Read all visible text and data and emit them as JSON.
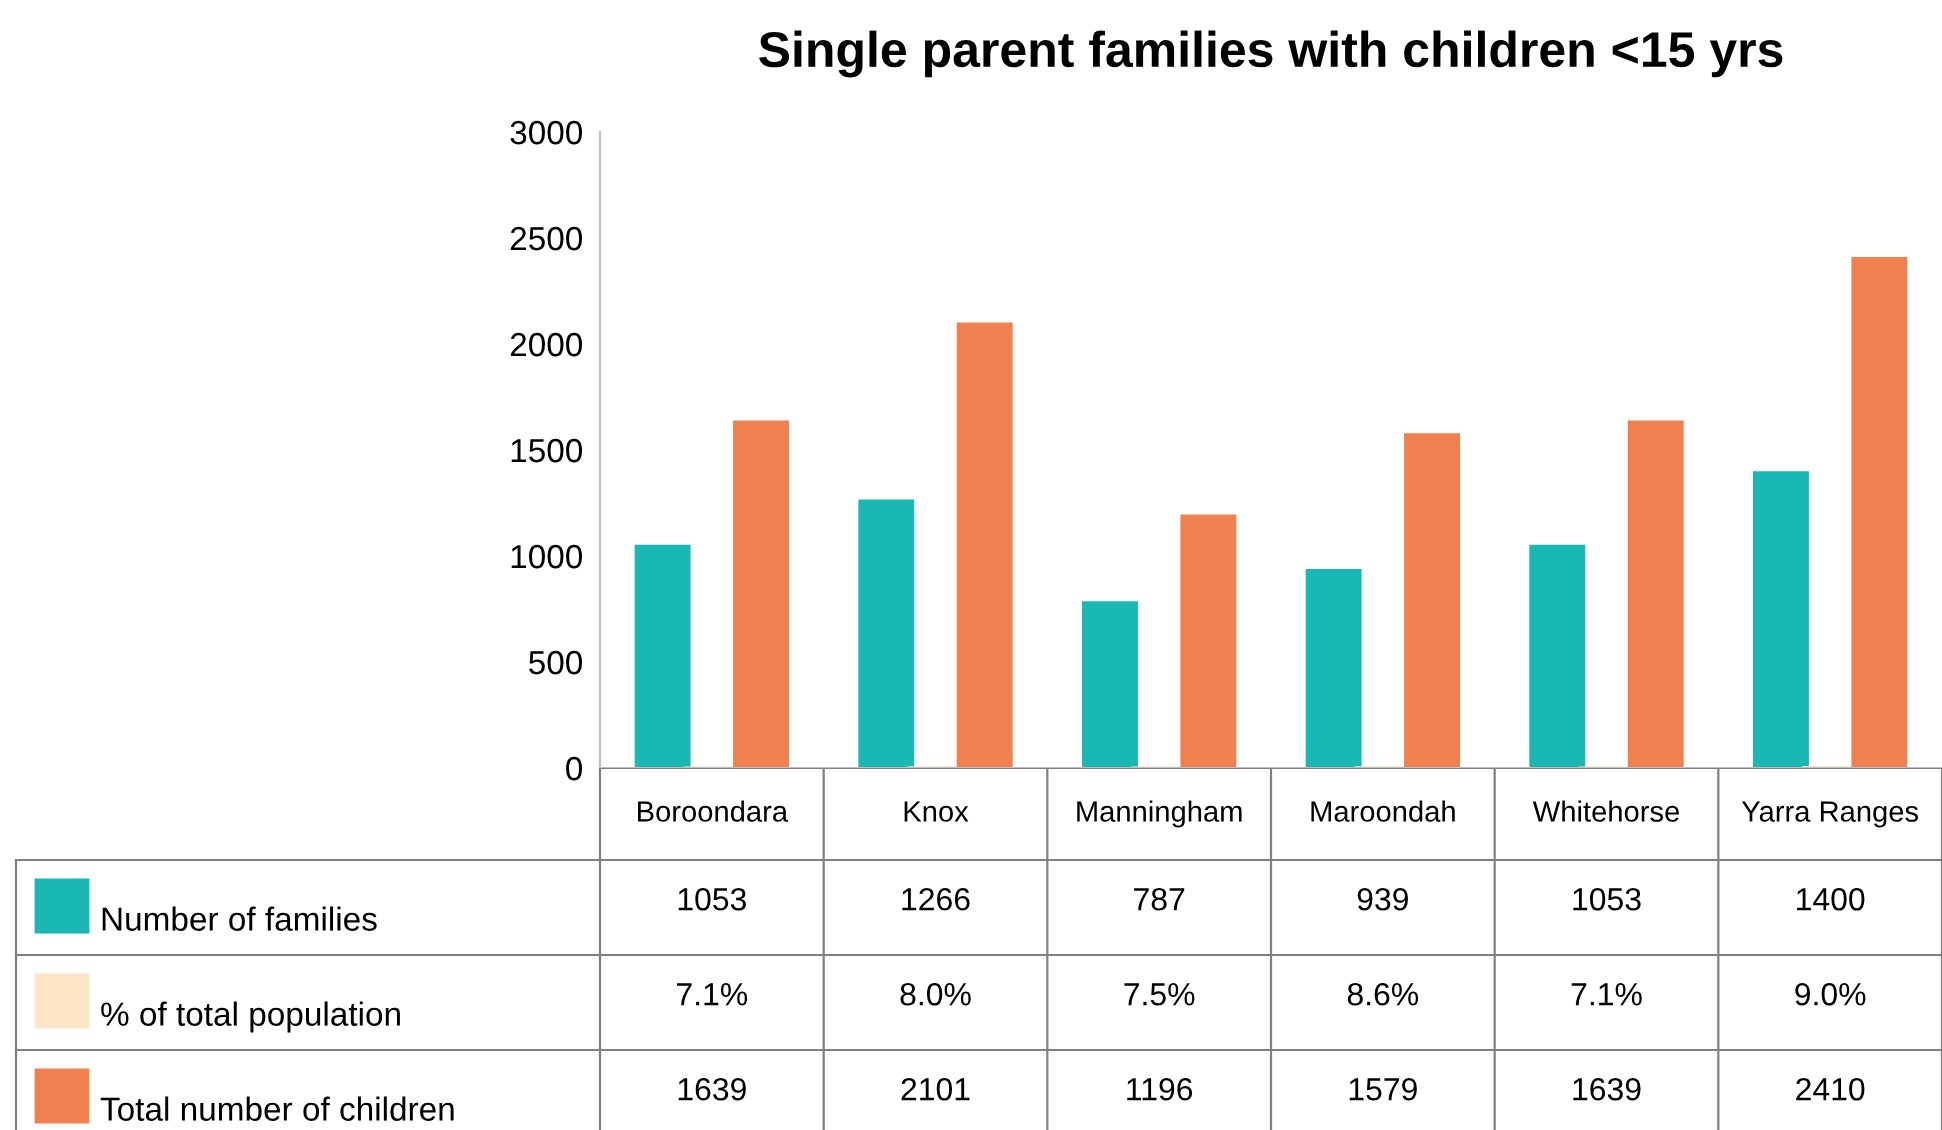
{
  "chart_data": {
    "type": "bar",
    "title": "Single parent families with children <15 yrs",
    "categories": [
      "Boroondara",
      "Knox",
      "Manningham",
      "Maroondah",
      "Whitehorse",
      "Yarra Ranges"
    ],
    "series": [
      {
        "name": "Number of families",
        "color": "#1ab8b4",
        "values": [
          1053,
          1266,
          787,
          939,
          1053,
          1400
        ],
        "value_labels": [
          "1053",
          "1266",
          "787",
          "939",
          "1053",
          "1400"
        ]
      },
      {
        "name": "% of total population",
        "color": "#fde6c8",
        "values": [
          7.1,
          8.0,
          7.5,
          8.6,
          7.1,
          9.0
        ],
        "value_labels": [
          "7.1%",
          "8.0%",
          "7.5%",
          "8.6%",
          "7.1%",
          "9.0%"
        ]
      },
      {
        "name": "Total number of children",
        "color": "#f08050",
        "values": [
          1639,
          2101,
          1196,
          1579,
          1639,
          2410
        ],
        "value_labels": [
          "1639",
          "2101",
          "1196",
          "1579",
          "1639",
          "2410"
        ]
      }
    ],
    "ylim": [
      0,
      3000
    ],
    "yticks": [
      0,
      500,
      1000,
      1500,
      2000,
      2500,
      3000
    ],
    "grid": false,
    "legend": "bottom left"
  }
}
